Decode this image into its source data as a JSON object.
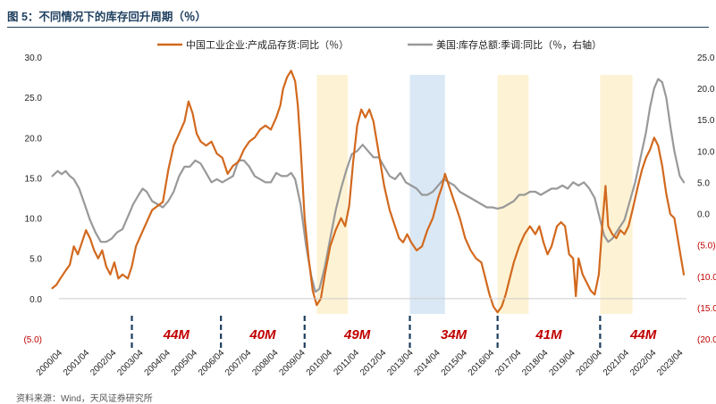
{
  "title": "图 5：不同情况下的库存回升周期（％）",
  "source": "资料来源：Wind，天风证券研究所",
  "colors": {
    "china": "#d2691e",
    "us": "#999999",
    "band_yellow": "#fdf3d4",
    "band_blue": "#dae8f5",
    "red": "#c00000",
    "divider": "#1d3e5e"
  },
  "chart_data": {
    "type": "line",
    "title": "不同情况下的库存回升周期（％）",
    "x": [
      "2000/04",
      "2001/04",
      "2002/04",
      "2003/04",
      "2004/04",
      "2005/04",
      "2006/04",
      "2007/04",
      "2008/04",
      "2009/04",
      "2010/04",
      "2011/04",
      "2012/04",
      "2013/04",
      "2014/04",
      "2015/04",
      "2016/04",
      "2017/04",
      "2018/04",
      "2019/04",
      "2020/04",
      "2021/04",
      "2022/04",
      "2023/04"
    ],
    "x_range": [
      2000.25,
      2023.5
    ],
    "left_axis": {
      "ticks": [
        "30.0",
        "25.0",
        "20.0",
        "15.0",
        "10.0",
        "5.0",
        "0.0",
        "(5.0)"
      ],
      "range": [
        -5,
        30
      ]
    },
    "right_axis": {
      "ticks": [
        "25.0",
        "20.0",
        "15.0",
        "10.0",
        "5.0",
        "0.0",
        "(5.0)",
        "(10.0)",
        "(15.0)",
        "(20.0)"
      ],
      "range": [
        -20,
        25
      ]
    },
    "series": [
      {
        "name": "中国工业企业:产成品存货:同比（％）",
        "axis": "left",
        "color": "#d2691e",
        "points": [
          [
            2000.0,
            1.3
          ],
          [
            2000.15,
            1.7
          ],
          [
            2000.3,
            2.5
          ],
          [
            2000.5,
            3.5
          ],
          [
            2000.65,
            4.2
          ],
          [
            2000.8,
            6.5
          ],
          [
            2000.95,
            5.5
          ],
          [
            2001.1,
            7.0
          ],
          [
            2001.25,
            8.5
          ],
          [
            2001.4,
            7.5
          ],
          [
            2001.55,
            6.0
          ],
          [
            2001.7,
            5.0
          ],
          [
            2001.85,
            6.0
          ],
          [
            2002.0,
            4.0
          ],
          [
            2002.15,
            3.0
          ],
          [
            2002.3,
            4.5
          ],
          [
            2002.45,
            2.5
          ],
          [
            2002.6,
            3.0
          ],
          [
            2002.8,
            2.5
          ],
          [
            2002.95,
            4.0
          ],
          [
            2003.1,
            6.5
          ],
          [
            2003.3,
            8.0
          ],
          [
            2003.5,
            9.5
          ],
          [
            2003.7,
            11.0
          ],
          [
            2003.9,
            11.5
          ],
          [
            2004.1,
            12.0
          ],
          [
            2004.3,
            16.0
          ],
          [
            2004.5,
            19.0
          ],
          [
            2004.7,
            20.5
          ],
          [
            2004.9,
            22.0
          ],
          [
            2005.05,
            24.5
          ],
          [
            2005.2,
            23.0
          ],
          [
            2005.35,
            20.5
          ],
          [
            2005.5,
            19.5
          ],
          [
            2005.7,
            19.0
          ],
          [
            2005.9,
            19.5
          ],
          [
            2006.1,
            18.0
          ],
          [
            2006.3,
            17.5
          ],
          [
            2006.5,
            15.5
          ],
          [
            2006.7,
            16.5
          ],
          [
            2006.9,
            17.0
          ],
          [
            2007.1,
            18.5
          ],
          [
            2007.3,
            19.5
          ],
          [
            2007.5,
            20.0
          ],
          [
            2007.7,
            21.0
          ],
          [
            2007.9,
            21.5
          ],
          [
            2008.1,
            21.0
          ],
          [
            2008.3,
            22.5
          ],
          [
            2008.45,
            24.0
          ],
          [
            2008.55,
            26.0
          ],
          [
            2008.7,
            27.5
          ],
          [
            2008.85,
            28.3
          ],
          [
            2009.0,
            27.0
          ],
          [
            2009.1,
            24.0
          ],
          [
            2009.2,
            19.0
          ],
          [
            2009.35,
            10.0
          ],
          [
            2009.5,
            5.0
          ],
          [
            2009.65,
            1.0
          ],
          [
            2009.8,
            -0.8
          ],
          [
            2009.95,
            0.0
          ],
          [
            2010.1,
            3.0
          ],
          [
            2010.3,
            6.5
          ],
          [
            2010.5,
            8.5
          ],
          [
            2010.7,
            10.0
          ],
          [
            2010.85,
            9.0
          ],
          [
            2011.0,
            11.5
          ],
          [
            2011.15,
            17.0
          ],
          [
            2011.3,
            21.5
          ],
          [
            2011.45,
            23.5
          ],
          [
            2011.6,
            22.5
          ],
          [
            2011.75,
            23.5
          ],
          [
            2011.9,
            22.0
          ],
          [
            2012.1,
            18.0
          ],
          [
            2012.3,
            14.0
          ],
          [
            2012.5,
            11.0
          ],
          [
            2012.7,
            9.0
          ],
          [
            2012.85,
            7.5
          ],
          [
            2013.0,
            7.0
          ],
          [
            2013.15,
            8.0
          ],
          [
            2013.3,
            7.0
          ],
          [
            2013.5,
            6.0
          ],
          [
            2013.7,
            6.5
          ],
          [
            2013.9,
            8.5
          ],
          [
            2014.1,
            10.0
          ],
          [
            2014.3,
            12.5
          ],
          [
            2014.45,
            14.0
          ],
          [
            2014.55,
            15.5
          ],
          [
            2014.7,
            14.0
          ],
          [
            2014.9,
            12.0
          ],
          [
            2015.1,
            10.0
          ],
          [
            2015.3,
            7.5
          ],
          [
            2015.5,
            6.0
          ],
          [
            2015.7,
            5.0
          ],
          [
            2015.9,
            4.5
          ],
          [
            2016.05,
            2.5
          ],
          [
            2016.2,
            0.5
          ],
          [
            2016.35,
            -1.0
          ],
          [
            2016.5,
            -1.7
          ],
          [
            2016.65,
            -1.0
          ],
          [
            2016.8,
            0.5
          ],
          [
            2016.95,
            2.5
          ],
          [
            2017.1,
            4.5
          ],
          [
            2017.3,
            6.5
          ],
          [
            2017.5,
            8.0
          ],
          [
            2017.7,
            9.0
          ],
          [
            2017.9,
            8.0
          ],
          [
            2018.05,
            9.0
          ],
          [
            2018.2,
            7.0
          ],
          [
            2018.35,
            5.5
          ],
          [
            2018.5,
            6.5
          ],
          [
            2018.7,
            9.0
          ],
          [
            2018.85,
            9.5
          ],
          [
            2019.0,
            9.0
          ],
          [
            2019.15,
            5.5
          ],
          [
            2019.3,
            5.0
          ],
          [
            2019.4,
            0.3
          ],
          [
            2019.5,
            5.0
          ],
          [
            2019.65,
            3.0
          ],
          [
            2019.8,
            2.0
          ],
          [
            2019.95,
            1.0
          ],
          [
            2020.1,
            0.5
          ],
          [
            2020.25,
            3.0
          ],
          [
            2020.4,
            10.0
          ],
          [
            2020.5,
            14.0
          ],
          [
            2020.6,
            9.0
          ],
          [
            2020.75,
            8.0
          ],
          [
            2020.9,
            7.5
          ],
          [
            2021.05,
            8.5
          ],
          [
            2021.2,
            8.0
          ],
          [
            2021.35,
            9.0
          ],
          [
            2021.5,
            11.0
          ],
          [
            2021.7,
            14.0
          ],
          [
            2021.85,
            16.0
          ],
          [
            2022.0,
            17.5
          ],
          [
            2022.15,
            18.5
          ],
          [
            2022.3,
            20.0
          ],
          [
            2022.45,
            19.0
          ],
          [
            2022.6,
            16.5
          ],
          [
            2022.75,
            13.0
          ],
          [
            2022.9,
            10.5
          ],
          [
            2023.05,
            10.0
          ],
          [
            2023.2,
            7.0
          ],
          [
            2023.4,
            3.0
          ]
        ]
      },
      {
        "name": "美国:库存总额:季调:同比（％，右轴）",
        "axis": "right",
        "color": "#999999",
        "points": [
          [
            2000.0,
            6.0
          ],
          [
            2000.2,
            6.8
          ],
          [
            2000.35,
            6.3
          ],
          [
            2000.5,
            6.8
          ],
          [
            2000.65,
            6.0
          ],
          [
            2000.8,
            5.5
          ],
          [
            2001.0,
            4.0
          ],
          [
            2001.2,
            1.5
          ],
          [
            2001.4,
            -1.0
          ],
          [
            2001.6,
            -3.0
          ],
          [
            2001.8,
            -4.5
          ],
          [
            2002.0,
            -4.5
          ],
          [
            2002.2,
            -4.0
          ],
          [
            2002.4,
            -3.0
          ],
          [
            2002.6,
            -2.5
          ],
          [
            2002.8,
            -0.5
          ],
          [
            2003.0,
            1.5
          ],
          [
            2003.2,
            3.0
          ],
          [
            2003.35,
            4.0
          ],
          [
            2003.5,
            3.5
          ],
          [
            2003.7,
            2.0
          ],
          [
            2003.9,
            1.5
          ],
          [
            2004.1,
            1.0
          ],
          [
            2004.3,
            2.0
          ],
          [
            2004.5,
            3.5
          ],
          [
            2004.7,
            6.0
          ],
          [
            2004.9,
            7.5
          ],
          [
            2005.1,
            7.5
          ],
          [
            2005.3,
            8.5
          ],
          [
            2005.5,
            8.0
          ],
          [
            2005.7,
            6.5
          ],
          [
            2005.9,
            5.0
          ],
          [
            2006.1,
            5.5
          ],
          [
            2006.3,
            5.0
          ],
          [
            2006.5,
            5.5
          ],
          [
            2006.7,
            6.0
          ],
          [
            2006.9,
            8.5
          ],
          [
            2007.1,
            8.5
          ],
          [
            2007.3,
            7.5
          ],
          [
            2007.5,
            6.0
          ],
          [
            2007.7,
            5.5
          ],
          [
            2007.9,
            5.0
          ],
          [
            2008.1,
            5.0
          ],
          [
            2008.3,
            6.5
          ],
          [
            2008.5,
            6.0
          ],
          [
            2008.7,
            6.0
          ],
          [
            2008.85,
            6.5
          ],
          [
            2009.0,
            5.5
          ],
          [
            2009.2,
            1.5
          ],
          [
            2009.4,
            -5.0
          ],
          [
            2009.6,
            -10.0
          ],
          [
            2009.75,
            -12.5
          ],
          [
            2009.9,
            -12.0
          ],
          [
            2010.1,
            -8.5
          ],
          [
            2010.3,
            -4.0
          ],
          [
            2010.5,
            0.5
          ],
          [
            2010.7,
            4.0
          ],
          [
            2010.9,
            7.0
          ],
          [
            2011.1,
            9.5
          ],
          [
            2011.3,
            10.0
          ],
          [
            2011.5,
            11.0
          ],
          [
            2011.7,
            10.0
          ],
          [
            2011.9,
            9.0
          ],
          [
            2012.1,
            9.0
          ],
          [
            2012.3,
            7.5
          ],
          [
            2012.5,
            6.0
          ],
          [
            2012.7,
            5.5
          ],
          [
            2012.9,
            6.5
          ],
          [
            2013.1,
            5.0
          ],
          [
            2013.3,
            4.5
          ],
          [
            2013.5,
            4.0
          ],
          [
            2013.7,
            3.0
          ],
          [
            2013.9,
            3.0
          ],
          [
            2014.1,
            3.5
          ],
          [
            2014.3,
            4.5
          ],
          [
            2014.5,
            5.5
          ],
          [
            2014.7,
            5.0
          ],
          [
            2014.9,
            4.5
          ],
          [
            2015.1,
            3.5
          ],
          [
            2015.3,
            3.0
          ],
          [
            2015.5,
            2.5
          ],
          [
            2015.7,
            2.0
          ],
          [
            2015.9,
            1.5
          ],
          [
            2016.1,
            1.0
          ],
          [
            2016.3,
            1.0
          ],
          [
            2016.5,
            0.8
          ],
          [
            2016.7,
            1.0
          ],
          [
            2016.9,
            1.5
          ],
          [
            2017.1,
            2.0
          ],
          [
            2017.3,
            3.0
          ],
          [
            2017.5,
            3.0
          ],
          [
            2017.7,
            3.5
          ],
          [
            2017.9,
            3.5
          ],
          [
            2018.1,
            3.0
          ],
          [
            2018.3,
            3.5
          ],
          [
            2018.5,
            4.0
          ],
          [
            2018.7,
            4.0
          ],
          [
            2018.9,
            4.5
          ],
          [
            2019.1,
            4.0
          ],
          [
            2019.3,
            5.0
          ],
          [
            2019.5,
            4.5
          ],
          [
            2019.7,
            5.0
          ],
          [
            2019.9,
            4.0
          ],
          [
            2020.1,
            2.5
          ],
          [
            2020.3,
            -1.0
          ],
          [
            2020.45,
            -3.5
          ],
          [
            2020.6,
            -4.5
          ],
          [
            2020.75,
            -4.0
          ],
          [
            2020.9,
            -3.0
          ],
          [
            2021.05,
            -2.0
          ],
          [
            2021.2,
            -1.0
          ],
          [
            2021.4,
            2.0
          ],
          [
            2021.6,
            5.0
          ],
          [
            2021.8,
            9.0
          ],
          [
            2022.0,
            13.0
          ],
          [
            2022.15,
            17.0
          ],
          [
            2022.3,
            20.0
          ],
          [
            2022.45,
            21.5
          ],
          [
            2022.6,
            21.0
          ],
          [
            2022.75,
            18.5
          ],
          [
            2022.9,
            14.0
          ],
          [
            2023.05,
            10.0
          ],
          [
            2023.25,
            6.0
          ],
          [
            2023.4,
            5.0
          ]
        ]
      }
    ],
    "shaded_periods": [
      {
        "from": 2009.8,
        "to": 2010.95,
        "color": "yellow"
      },
      {
        "from": 2013.25,
        "to": 2014.55,
        "color": "blue"
      },
      {
        "from": 2016.5,
        "to": 2017.65,
        "color": "yellow"
      },
      {
        "from": 2020.3,
        "to": 2021.5,
        "color": "yellow"
      }
    ],
    "cycle_dividers": [
      2002.95,
      2006.25,
      2009.35,
      2013.25,
      2016.5,
      2020.3
    ],
    "cycle_labels": [
      {
        "text": "44M",
        "from": 2002.95,
        "to": 2006.25
      },
      {
        "text": "40M",
        "from": 2006.25,
        "to": 2009.35
      },
      {
        "text": "49M",
        "from": 2009.35,
        "to": 2013.25
      },
      {
        "text": "34M",
        "from": 2013.25,
        "to": 2016.5
      },
      {
        "text": "41M",
        "from": 2016.5,
        "to": 2020.3
      },
      {
        "text": "44M",
        "from": 2020.3,
        "to": 2023.5
      }
    ]
  }
}
